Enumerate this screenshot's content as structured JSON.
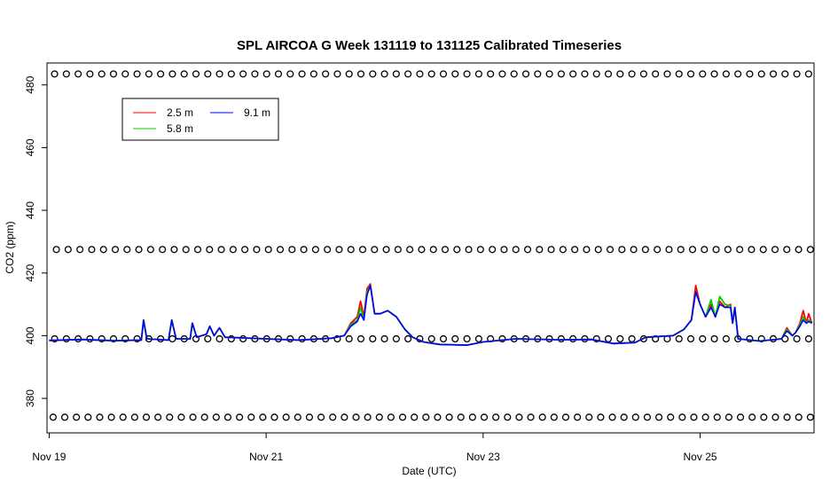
{
  "chart_data": {
    "type": "line",
    "title": "SPL AIRCOA G  Week 131119 to 131125  Calibrated Timeseries",
    "xlabel": "Date (UTC)",
    "ylabel": "CO2 (ppm)",
    "x_ticks": [
      {
        "day": 0,
        "label": "Nov 19"
      },
      {
        "day": 2,
        "label": "Nov 21"
      },
      {
        "day": 4,
        "label": "Nov 23"
      },
      {
        "day": 6,
        "label": "Nov 25"
      }
    ],
    "xlim": [
      -0.02,
      7.05
    ],
    "ylim": [
      369,
      487
    ],
    "y_ticks": [
      380,
      400,
      420,
      440,
      460,
      480
    ],
    "legend_position": "top-left",
    "series": [
      {
        "name": "2.5 m",
        "color": "#ff0000",
        "points": [
          [
            0,
            398.5
          ],
          [
            0.3,
            398.8
          ],
          [
            0.6,
            398.4
          ],
          [
            0.85,
            398.6
          ],
          [
            0.87,
            405
          ],
          [
            0.9,
            399
          ],
          [
            1.1,
            398.6
          ],
          [
            1.13,
            405
          ],
          [
            1.17,
            399
          ],
          [
            1.3,
            399
          ],
          [
            1.32,
            404
          ],
          [
            1.36,
            399.5
          ],
          [
            1.45,
            400.5
          ],
          [
            1.48,
            403
          ],
          [
            1.52,
            400
          ],
          [
            1.57,
            402.5
          ],
          [
            1.62,
            399.5
          ],
          [
            2,
            399
          ],
          [
            2.3,
            398.6
          ],
          [
            2.6,
            399.2
          ],
          [
            2.72,
            400
          ],
          [
            2.78,
            404
          ],
          [
            2.84,
            406
          ],
          [
            2.87,
            411
          ],
          [
            2.9,
            406
          ],
          [
            2.93,
            415
          ],
          [
            2.96,
            416.5
          ],
          [
            3,
            407
          ],
          [
            3.05,
            407
          ],
          [
            3.12,
            408
          ],
          [
            3.2,
            406
          ],
          [
            3.28,
            402
          ],
          [
            3.35,
            399.5
          ],
          [
            3.45,
            398
          ],
          [
            3.6,
            397.2
          ],
          [
            3.85,
            397
          ],
          [
            4,
            398
          ],
          [
            4.3,
            399
          ],
          [
            4.7,
            398.7
          ],
          [
            5,
            398.8
          ],
          [
            5.2,
            397.5
          ],
          [
            5.4,
            397.8
          ],
          [
            5.5,
            399.5
          ],
          [
            5.75,
            400
          ],
          [
            5.85,
            402
          ],
          [
            5.92,
            405
          ],
          [
            5.96,
            416
          ],
          [
            6.0,
            410
          ],
          [
            6.05,
            406
          ],
          [
            6.1,
            410
          ],
          [
            6.14,
            406
          ],
          [
            6.18,
            411
          ],
          [
            6.23,
            409
          ],
          [
            6.28,
            410
          ],
          [
            6.3,
            404
          ],
          [
            6.32,
            409
          ],
          [
            6.35,
            399
          ],
          [
            6.55,
            398.3
          ],
          [
            6.75,
            399
          ],
          [
            6.8,
            402.5
          ],
          [
            6.85,
            400
          ],
          [
            6.88,
            401
          ],
          [
            6.92,
            404
          ],
          [
            6.95,
            408
          ],
          [
            6.98,
            404
          ],
          [
            7.0,
            407
          ],
          [
            7.03,
            404
          ]
        ]
      },
      {
        "name": "5.8 m",
        "color": "#00cc00",
        "points": [
          [
            0,
            398.5
          ],
          [
            0.3,
            398.8
          ],
          [
            0.6,
            398.4
          ],
          [
            0.85,
            398.6
          ],
          [
            0.87,
            405
          ],
          [
            0.9,
            399
          ],
          [
            1.1,
            398.6
          ],
          [
            1.13,
            405
          ],
          [
            1.17,
            399
          ],
          [
            1.3,
            399
          ],
          [
            1.32,
            404
          ],
          [
            1.36,
            399.5
          ],
          [
            1.45,
            400.5
          ],
          [
            1.48,
            403
          ],
          [
            1.52,
            400
          ],
          [
            1.57,
            402.5
          ],
          [
            1.62,
            399.5
          ],
          [
            2,
            399
          ],
          [
            2.3,
            398.6
          ],
          [
            2.6,
            399.2
          ],
          [
            2.72,
            400
          ],
          [
            2.78,
            403.5
          ],
          [
            2.84,
            405
          ],
          [
            2.87,
            409
          ],
          [
            2.9,
            405
          ],
          [
            2.93,
            414
          ],
          [
            2.96,
            416
          ],
          [
            3,
            407
          ],
          [
            3.05,
            407
          ],
          [
            3.12,
            408
          ],
          [
            3.2,
            406
          ],
          [
            3.28,
            402
          ],
          [
            3.35,
            399.5
          ],
          [
            3.45,
            398
          ],
          [
            3.6,
            397.2
          ],
          [
            3.85,
            397
          ],
          [
            4,
            398
          ],
          [
            4.3,
            399
          ],
          [
            4.7,
            398.7
          ],
          [
            5,
            398.8
          ],
          [
            5.2,
            397.5
          ],
          [
            5.4,
            397.8
          ],
          [
            5.5,
            399.5
          ],
          [
            5.75,
            400
          ],
          [
            5.85,
            402
          ],
          [
            5.92,
            405
          ],
          [
            5.96,
            414
          ],
          [
            6.0,
            410
          ],
          [
            6.05,
            406
          ],
          [
            6.1,
            411.5
          ],
          [
            6.14,
            406
          ],
          [
            6.18,
            412.5
          ],
          [
            6.23,
            410
          ],
          [
            6.28,
            409.5
          ],
          [
            6.3,
            404
          ],
          [
            6.32,
            409
          ],
          [
            6.35,
            399
          ],
          [
            6.55,
            398.3
          ],
          [
            6.75,
            399
          ],
          [
            6.8,
            402
          ],
          [
            6.85,
            400
          ],
          [
            6.88,
            401
          ],
          [
            6.92,
            403.5
          ],
          [
            6.95,
            406
          ],
          [
            6.98,
            404
          ],
          [
            7.0,
            405
          ],
          [
            7.03,
            404
          ]
        ]
      },
      {
        "name": "9.1 m",
        "color": "#0000ff",
        "points": [
          [
            0,
            398.5
          ],
          [
            0.3,
            398.8
          ],
          [
            0.6,
            398.4
          ],
          [
            0.85,
            398.6
          ],
          [
            0.87,
            405
          ],
          [
            0.9,
            399
          ],
          [
            1.1,
            398.6
          ],
          [
            1.13,
            405
          ],
          [
            1.17,
            399
          ],
          [
            1.3,
            399
          ],
          [
            1.32,
            404
          ],
          [
            1.36,
            399.5
          ],
          [
            1.45,
            400.5
          ],
          [
            1.48,
            403
          ],
          [
            1.52,
            400
          ],
          [
            1.57,
            402.5
          ],
          [
            1.62,
            399.5
          ],
          [
            2,
            399
          ],
          [
            2.3,
            398.6
          ],
          [
            2.6,
            399.2
          ],
          [
            2.72,
            400
          ],
          [
            2.78,
            403
          ],
          [
            2.84,
            404.5
          ],
          [
            2.87,
            407
          ],
          [
            2.9,
            405
          ],
          [
            2.93,
            413
          ],
          [
            2.96,
            416
          ],
          [
            3,
            407
          ],
          [
            3.05,
            407
          ],
          [
            3.12,
            408
          ],
          [
            3.2,
            406
          ],
          [
            3.28,
            402
          ],
          [
            3.35,
            399.5
          ],
          [
            3.45,
            398
          ],
          [
            3.6,
            397.2
          ],
          [
            3.85,
            397
          ],
          [
            4,
            398
          ],
          [
            4.3,
            399
          ],
          [
            4.7,
            398.7
          ],
          [
            5,
            398.8
          ],
          [
            5.2,
            397.5
          ],
          [
            5.4,
            397.8
          ],
          [
            5.5,
            399.5
          ],
          [
            5.75,
            400
          ],
          [
            5.85,
            402
          ],
          [
            5.92,
            405
          ],
          [
            5.96,
            414
          ],
          [
            6.0,
            410
          ],
          [
            6.05,
            406
          ],
          [
            6.1,
            409
          ],
          [
            6.14,
            406
          ],
          [
            6.18,
            410
          ],
          [
            6.23,
            409
          ],
          [
            6.28,
            409
          ],
          [
            6.3,
            404
          ],
          [
            6.32,
            409
          ],
          [
            6.35,
            399
          ],
          [
            6.55,
            398.3
          ],
          [
            6.75,
            399
          ],
          [
            6.8,
            401.5
          ],
          [
            6.85,
            400
          ],
          [
            6.88,
            401
          ],
          [
            6.92,
            403
          ],
          [
            6.95,
            405
          ],
          [
            6.98,
            404
          ],
          [
            7.0,
            404.5
          ],
          [
            7.03,
            404
          ]
        ]
      }
    ],
    "marker_rows": [
      {
        "y": 483.5,
        "symbol": "open-circle",
        "x_start": 0.05,
        "x_end": 7.0,
        "count": 65
      },
      {
        "y": 427.5,
        "symbol": "open-circle",
        "x_start": 0.05,
        "x_end": 7.0,
        "count": 65
      },
      {
        "y": 399,
        "symbol": "open-circle",
        "x_start": 0.05,
        "x_end": 7.0,
        "count": 65
      },
      {
        "y": 374,
        "symbol": "open-circle",
        "x_start": 0.02,
        "x_end": 7.0,
        "count": 66
      }
    ],
    "grid": false
  }
}
